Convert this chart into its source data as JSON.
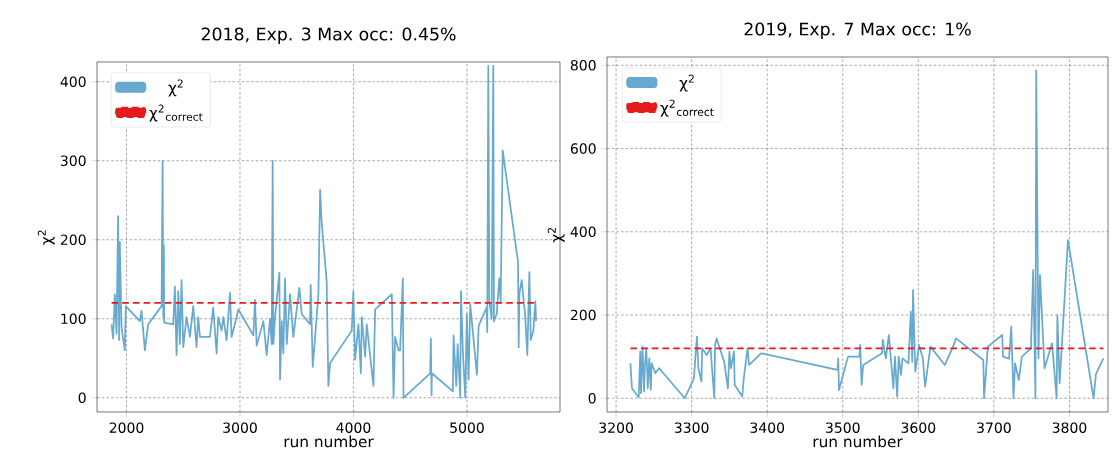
{
  "chart_data": [
    {
      "type": "line",
      "title": "2018, Exp. 3 Max occ: 0.45%",
      "xlabel": "run number",
      "ylabel": "χ$^{2}$",
      "xlim": [
        1740,
        5820
      ],
      "ylim": [
        -18,
        425
      ],
      "xticks": [
        2000,
        3000,
        4000,
        5000
      ],
      "yticks": [
        0,
        100,
        200,
        300,
        400
      ],
      "grid": true,
      "legend": "top left",
      "series": [
        {
          "name": "χ$^{2}$",
          "color": "#67a9cf",
          "x": [
            1868,
            1882,
            1897,
            1912,
            1926,
            1935,
            1941,
            1956,
            1985,
            1994,
            2118,
            2132,
            2162,
            2191,
            2309,
            2318,
            2324,
            2329,
            2332,
            2412,
            2426,
            2441,
            2456,
            2470,
            2485,
            2500,
            2529,
            2559,
            2588,
            2617,
            2632,
            2647,
            2735,
            2764,
            2794,
            2808,
            2838,
            2853,
            2882,
            2912,
            2926,
            2970,
            2985,
            3118,
            3132,
            3147,
            3206,
            3235,
            3265,
            3279,
            3288,
            3294,
            3309,
            3347,
            3353,
            3368,
            3382,
            3397,
            3412,
            3441,
            3470,
            3523,
            3544,
            3617,
            3623,
            3641,
            3691,
            3706,
            3720,
            3764,
            3779,
            3794,
            3985,
            3999,
            4014,
            4044,
            4065,
            4073,
            4103,
            4117,
            4176,
            4191,
            4338,
            4353,
            4367,
            4397,
            4411,
            4435,
            4441,
            4676,
            4682,
            4688,
            4691,
            4876,
            4882,
            4906,
            4918,
            4941,
            4947,
            4965,
            4985,
            4999,
            5014,
            5029,
            5088,
            5103,
            5173,
            5179,
            5188,
            5197,
            5218,
            5232,
            5238,
            5262,
            5285,
            5297,
            5315,
            5450,
            5456,
            5462,
            5482,
            5512,
            5532,
            5550,
            5562,
            5585,
            5603,
            5609
          ],
          "values": [
            93,
            75,
            131,
            81,
            230,
            73,
            197,
            89,
            60,
            116,
            97,
            110,
            60,
            93,
            116,
            300,
            102,
            193,
            95,
            93,
            141,
            54,
            135,
            68,
            149,
            64,
            102,
            77,
            116,
            64,
            102,
            77,
            77,
            114,
            56,
            102,
            85,
            102,
            73,
            133,
            77,
            102,
            112,
            79,
            124,
            66,
            97,
            54,
            100,
            68,
            300,
            68,
            102,
            158,
            23,
            97,
            56,
            151,
            68,
            131,
            77,
            139,
            106,
            93,
            143,
            39,
            131,
            263,
            222,
            147,
            15,
            44,
            85,
            135,
            48,
            93,
            31,
            102,
            52,
            93,
            15,
            112,
            131,
            0,
            77,
            60,
            60,
            151,
            0,
            31,
            75,
            3,
            31,
            8,
            79,
            15,
            68,
            0,
            135,
            56,
            0,
            106,
            23,
            118,
            29,
            91,
            114,
            83,
            420,
            122,
            100,
            420,
            97,
            106,
            151,
            122,
            313,
            172,
            64,
            131,
            149,
            106,
            54,
            159,
            73,
            85,
            122,
            97
          ]
        },
        {
          "name": "χ$^{2}$$_{correct}$",
          "color": "#e41a1c",
          "line_style": "dashed",
          "x": [
            1868,
            5612
          ],
          "values": [
            120,
            120
          ]
        }
      ]
    },
    {
      "type": "line",
      "title": "2019, Exp. 7 Max occ: 1%",
      "xlabel": "run number",
      "ylabel": "χ$^{2}$",
      "xlim": [
        3188,
        3851
      ],
      "ylim": [
        -33,
        820
      ],
      "xticks": [
        3200,
        3300,
        3400,
        3500,
        3600,
        3700,
        3800
      ],
      "yticks": [
        0,
        200,
        400,
        600,
        800
      ],
      "grid": true,
      "legend": "top left",
      "series": [
        {
          "name": "χ$^{2}$",
          "color": "#67a9cf",
          "x": [
            3219,
            3221,
            3230,
            3232,
            3233,
            3235,
            3237,
            3238,
            3240,
            3242,
            3244,
            3246,
            3247,
            3252,
            3257,
            3291,
            3303,
            3307,
            3309,
            3313,
            3314,
            3320,
            3325,
            3330,
            3331,
            3333,
            3343,
            3348,
            3350,
            3352,
            3356,
            3357,
            3367,
            3369,
            3374,
            3376,
            3392,
            3493,
            3494,
            3495,
            3507,
            3522,
            3523,
            3525,
            3527,
            3552,
            3553,
            3557,
            3561,
            3567,
            3569,
            3572,
            3574,
            3577,
            3579,
            3587,
            3590,
            3592,
            3593,
            3596,
            3601,
            3606,
            3609,
            3616,
            3635,
            3645,
            3650,
            3686,
            3687,
            3692,
            3711,
            3712,
            3720,
            3723,
            3726,
            3728,
            3733,
            3737,
            3749,
            3752,
            3755,
            3756,
            3759,
            3761,
            3767,
            3777,
            3783,
            3784,
            3787,
            3798,
            3832,
            3835,
            3845
          ],
          "values": [
            84,
            24,
            2,
            112,
            12,
            124,
            16,
            72,
            120,
            24,
            96,
            20,
            84,
            60,
            72,
            0,
            48,
            148,
            72,
            40,
            120,
            104,
            120,
            0,
            128,
            144,
            88,
            24,
            112,
            72,
            112,
            32,
            4,
            48,
            120,
            80,
            108,
            68,
            96,
            20,
            100,
            100,
            128,
            32,
            80,
            108,
            140,
            96,
            152,
            24,
            100,
            4,
            100,
            56,
            96,
            84,
            208,
            88,
            260,
            64,
            128,
            96,
            28,
            124,
            80,
            120,
            144,
            92,
            0,
            124,
            152,
            100,
            95,
            172,
            0,
            84,
            44,
            100,
            120,
            308,
            0,
            788,
            96,
            296,
            72,
            132,
            0,
            200,
            36,
            380,
            0,
            58,
            96
          ]
        },
        {
          "name": "χ$^{2}$$_{correct}$",
          "color": "#e41a1c",
          "line_style": "dashed",
          "x": [
            3219,
            3845
          ],
          "values": [
            120,
            120
          ]
        }
      ]
    }
  ]
}
